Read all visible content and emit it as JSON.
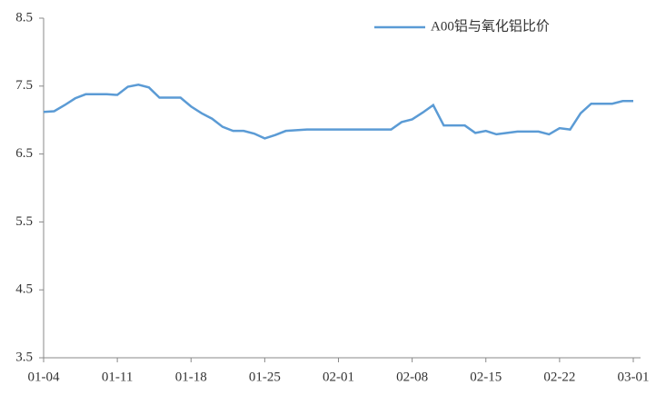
{
  "chart_data": {
    "type": "line",
    "categories": [
      "01-04",
      null,
      null,
      null,
      null,
      null,
      null,
      "01-11",
      null,
      null,
      null,
      null,
      null,
      null,
      "01-18",
      null,
      null,
      null,
      null,
      null,
      null,
      "01-25",
      null,
      null,
      null,
      null,
      null,
      null,
      "02-01",
      null,
      null,
      null,
      null,
      null,
      null,
      "02-08",
      null,
      null,
      null,
      null,
      null,
      null,
      "02-15",
      null,
      null,
      null,
      null,
      null,
      null,
      "02-22",
      null,
      null,
      null,
      null,
      null,
      null,
      "03-01"
    ],
    "series": [
      {
        "name": "A00铝与氧化铝比价",
        "color": "#5b9bd5",
        "values": [
          7.12,
          7.13,
          7.22,
          7.32,
          7.38,
          7.38,
          7.38,
          7.37,
          7.49,
          7.52,
          7.48,
          7.33,
          7.33,
          7.33,
          7.2,
          7.1,
          7.02,
          6.9,
          6.84,
          6.84,
          6.8,
          6.73,
          6.78,
          6.84,
          6.85,
          6.86,
          6.86,
          6.86,
          6.86,
          6.86,
          6.86,
          6.86,
          6.86,
          6.86,
          6.97,
          7.01,
          7.11,
          7.22,
          6.92,
          6.92,
          6.92,
          6.81,
          6.84,
          6.79,
          6.81,
          6.83,
          6.83,
          6.83,
          6.79,
          6.88,
          6.86,
          7.1,
          7.24,
          7.24,
          7.24,
          7.28,
          7.28
        ]
      }
    ],
    "ylim": [
      3.5,
      8.5
    ],
    "yticks": [
      3.5,
      4.5,
      5.5,
      6.5,
      7.5,
      8.5
    ],
    "legend": "top-right"
  }
}
